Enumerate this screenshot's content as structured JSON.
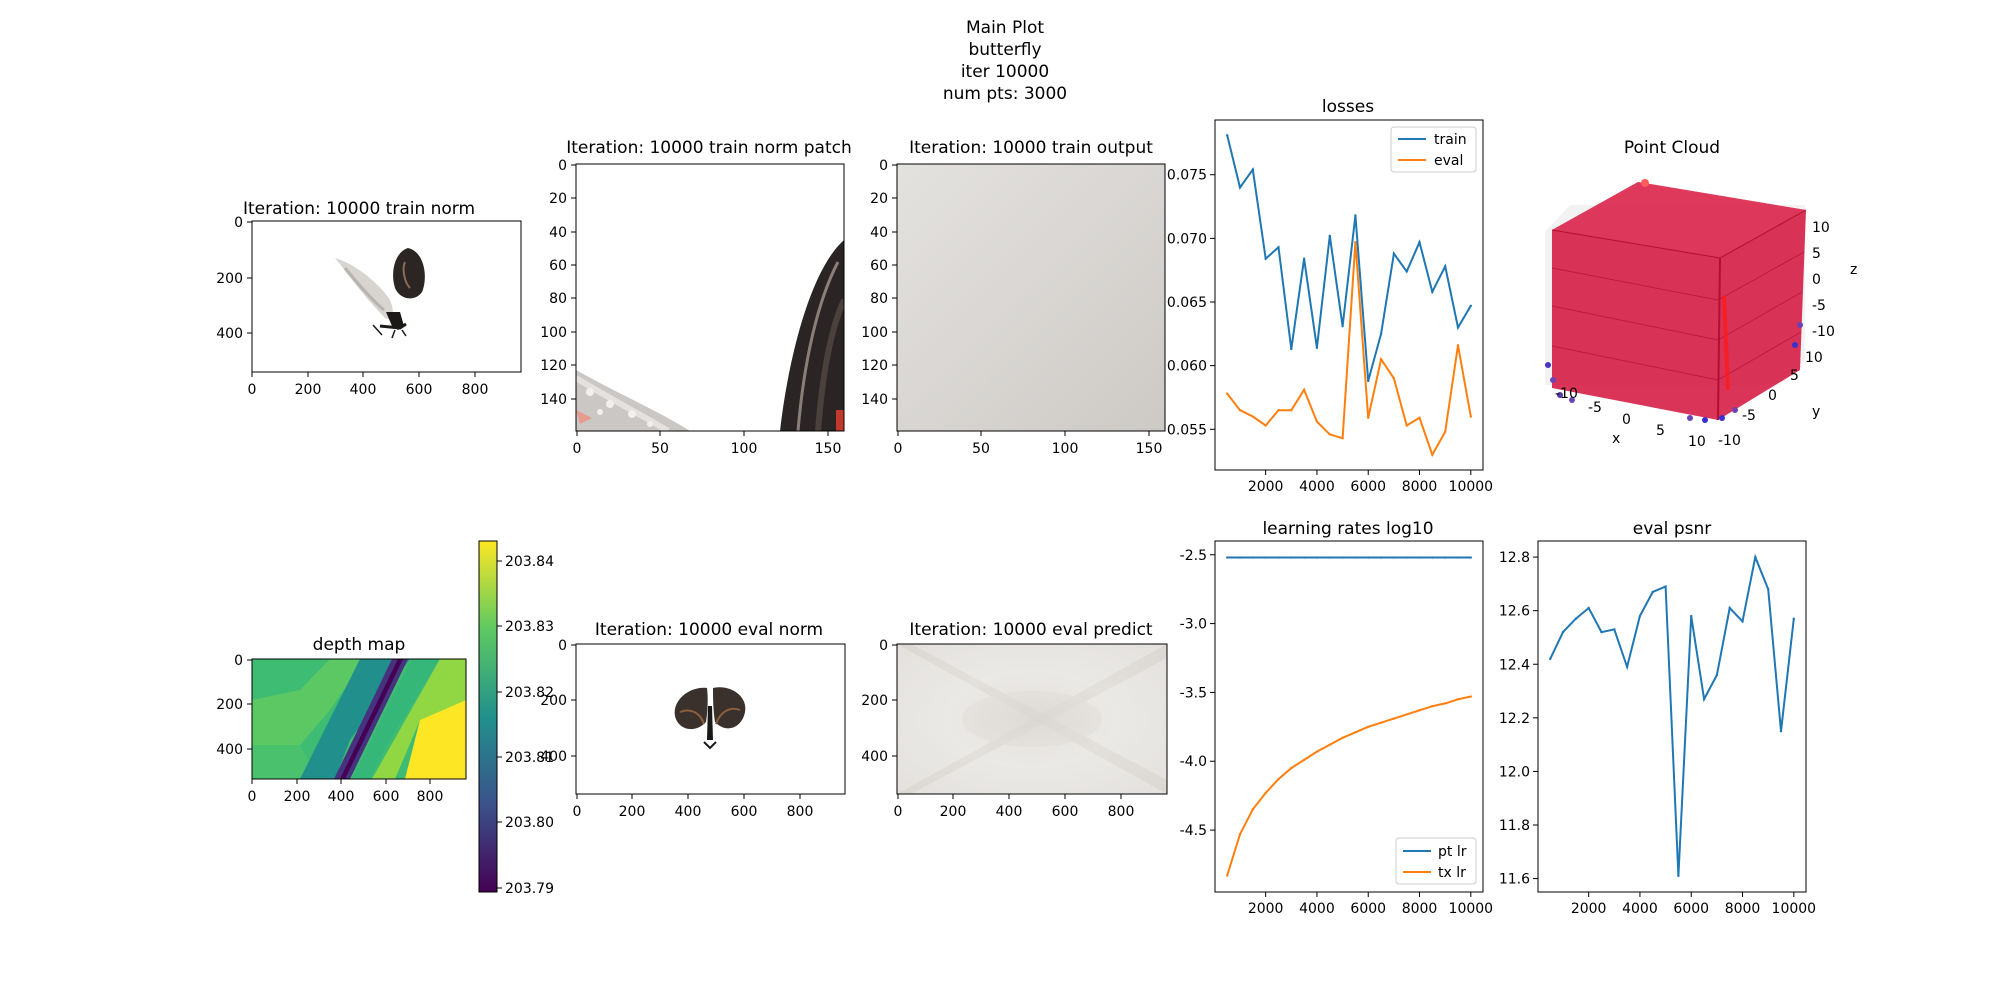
{
  "suptitle": [
    "Main Plot",
    "butterfly",
    "iter 10000",
    "num pts: 3000"
  ],
  "colors": {
    "blue": "#1f77b4",
    "orange": "#ff7f0e"
  },
  "panels": {
    "train_norm": {
      "title": "Iteration: 10000 train norm",
      "xticks": [
        "0",
        "200",
        "400",
        "600",
        "800"
      ],
      "yticks": [
        "0",
        "200",
        "400"
      ],
      "image": "butterfly render, wings open to the side, on white background"
    },
    "train_norm_patch": {
      "title": "Iteration: 10000 train norm patch",
      "xticks": [
        "0",
        "50",
        "100",
        "150"
      ],
      "yticks": [
        "0",
        "20",
        "40",
        "60",
        "80",
        "100",
        "120",
        "140"
      ],
      "image": "zoomed crop of butterfly wing edges on white"
    },
    "train_output": {
      "title": "Iteration: 10000 train output",
      "xticks": [
        "0",
        "50",
        "100",
        "150"
      ],
      "yticks": [
        "0",
        "20",
        "40",
        "60",
        "80",
        "100",
        "120",
        "140"
      ],
      "image": "light grey gradient"
    },
    "depth_map": {
      "title": "depth map",
      "xticks": [
        "0",
        "200",
        "400",
        "600",
        "800"
      ],
      "yticks": [
        "0",
        "200",
        "400"
      ],
      "colorbar_ticks": [
        "203.84",
        "203.83",
        "203.82",
        "203.81",
        "203.80",
        "203.79"
      ],
      "image": "viridis depth map with a dark diagonal band"
    },
    "eval_norm": {
      "title": "Iteration: 10000 eval norm",
      "xticks": [
        "0",
        "200",
        "400",
        "600",
        "800"
      ],
      "yticks": [
        "0",
        "200",
        "400"
      ],
      "image": "butterfly render, front view, on white background"
    },
    "eval_predict": {
      "title": "Iteration: 10000 eval predict",
      "xticks": [
        "0",
        "200",
        "400",
        "600",
        "800"
      ],
      "yticks": [
        "0",
        "200",
        "400"
      ],
      "image": "light grey image with soft X-shaped shading"
    },
    "point_cloud": {
      "title": "Point Cloud",
      "xlabel": "x",
      "ylabel": "y",
      "zlabel": "z",
      "xticks": [
        "-10",
        "-5",
        "0",
        "5",
        "10"
      ],
      "yticks": [
        "-10",
        "-5",
        "0",
        "5",
        "10"
      ],
      "zticks": [
        "10",
        "5",
        "0",
        "-5",
        "-10"
      ]
    }
  },
  "chart_data": [
    {
      "type": "line",
      "title": "losses",
      "x": [
        500,
        1000,
        1500,
        2000,
        2500,
        3000,
        3500,
        4000,
        4500,
        5000,
        5500,
        6000,
        6500,
        7000,
        7500,
        8000,
        8500,
        9000,
        9500,
        10000
      ],
      "series": [
        {
          "name": "train",
          "color": "#1f77b4",
          "values": [
            0.0781,
            0.074,
            0.0754,
            0.0684,
            0.0693,
            0.0613,
            0.0684,
            0.0614,
            0.0702,
            0.0631,
            0.0718,
            0.0588,
            0.0625,
            0.0688,
            0.0674,
            0.0697,
            0.0658,
            0.0678,
            0.063,
            0.0647
          ]
        },
        {
          "name": "eval",
          "color": "#ff7f0e",
          "values": [
            0.0578,
            0.0565,
            0.056,
            0.0553,
            0.0565,
            0.0565,
            0.0581,
            0.0556,
            0.0546,
            0.0543,
            0.0697,
            0.0559,
            0.0605,
            0.059,
            0.0553,
            0.0559,
            0.053,
            0.0548,
            0.0616,
            0.056
          ]
        }
      ],
      "xticks": [
        2000,
        4000,
        6000,
        8000,
        10000
      ],
      "yticks": [
        0.055,
        0.06,
        0.065,
        0.07,
        0.075
      ],
      "ytick_labels": [
        "0.055",
        "0.060",
        "0.065",
        "0.070",
        "0.075"
      ],
      "xlim": [
        25,
        10475
      ],
      "ylim": [
        0.0518,
        0.0793
      ],
      "legend": "top-right"
    },
    {
      "type": "line",
      "title": "learning rates log10",
      "x": [
        500,
        1000,
        1500,
        2000,
        2500,
        3000,
        3500,
        4000,
        4500,
        5000,
        5500,
        6000,
        6500,
        7000,
        7500,
        8000,
        8500,
        9000,
        9500,
        10000
      ],
      "series": [
        {
          "name": "pt lr",
          "color": "#1f77b4",
          "values": [
            -2.52,
            -2.52,
            -2.52,
            -2.52,
            -2.52,
            -2.52,
            -2.52,
            -2.52,
            -2.52,
            -2.52,
            -2.52,
            -2.52,
            -2.52,
            -2.52,
            -2.52,
            -2.52,
            -2.52,
            -2.52,
            -2.52,
            -2.52
          ]
        },
        {
          "name": "tx lr",
          "color": "#ff7f0e",
          "values": [
            -4.83,
            -4.53,
            -4.35,
            -4.23,
            -4.13,
            -4.05,
            -3.99,
            -3.93,
            -3.88,
            -3.83,
            -3.79,
            -3.75,
            -3.72,
            -3.69,
            -3.66,
            -3.63,
            -3.6,
            -3.58,
            -3.55,
            -3.53
          ]
        }
      ],
      "xticks": [
        2000,
        4000,
        6000,
        8000,
        10000
      ],
      "yticks": [
        -2.5,
        -3.0,
        -3.5,
        -4.0,
        -4.5
      ],
      "ytick_labels": [
        "-2.5",
        "-3.0",
        "-3.5",
        "-4.0",
        "-4.5"
      ],
      "xlim": [
        25,
        10475
      ],
      "ylim": [
        -4.95,
        -2.4
      ],
      "legend": "bottom-right"
    },
    {
      "type": "line",
      "title": "eval psnr",
      "x": [
        500,
        1000,
        1500,
        2000,
        2500,
        3000,
        3500,
        4000,
        4500,
        5000,
        5500,
        6000,
        6500,
        7000,
        7500,
        8000,
        8500,
        9000,
        9500,
        10000
      ],
      "series": [
        {
          "name": "",
          "color": "#1f77b4",
          "values": [
            12.42,
            12.52,
            12.57,
            12.61,
            12.52,
            12.53,
            12.39,
            12.58,
            12.67,
            12.69,
            11.61,
            12.58,
            12.27,
            12.36,
            12.61,
            12.56,
            12.8,
            12.68,
            12.15,
            12.57
          ]
        }
      ],
      "xticks": [
        2000,
        4000,
        6000,
        8000,
        10000
      ],
      "yticks": [
        11.6,
        11.8,
        12.0,
        12.2,
        12.4,
        12.6,
        12.8
      ],
      "ytick_labels": [
        "11.6",
        "11.8",
        "12.0",
        "12.2",
        "12.4",
        "12.6",
        "12.8"
      ],
      "xlim": [
        25,
        10475
      ],
      "ylim": [
        11.55,
        12.86
      ],
      "legend": "none"
    }
  ]
}
